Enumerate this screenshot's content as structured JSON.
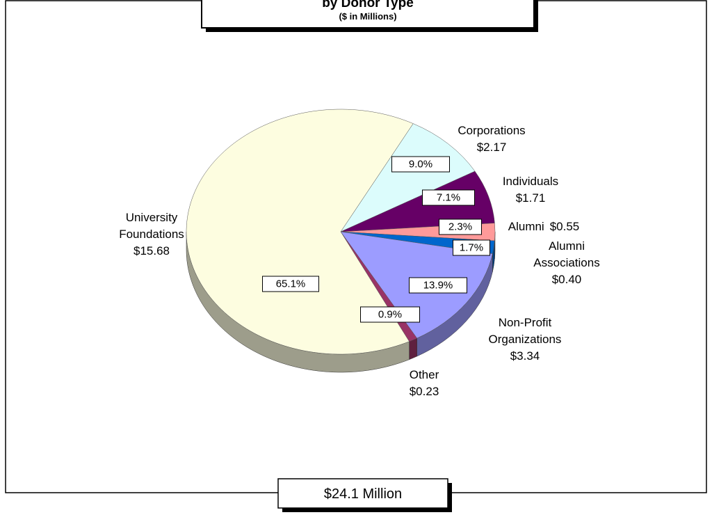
{
  "chart_data": {
    "type": "pie",
    "title": "by Donor Type",
    "subtitle": "($ in Millions)",
    "total_label": "$24.1 Million",
    "categories": [
      "Corporations",
      "Individuals",
      "Alumni",
      "Alumni Associations",
      "Non-Profit Organizations",
      "Other",
      "University Foundations"
    ],
    "values": [
      9.0,
      7.1,
      2.3,
      1.7,
      13.9,
      0.9,
      65.1
    ],
    "value_labels": [
      "9.0%",
      "7.1%",
      "2.3%",
      "1.7%",
      "13.9%",
      "0.9%",
      "65.1%"
    ],
    "amount_labels": [
      "$2.17",
      "$1.71",
      "$0.55",
      "$0.40",
      "$3.34",
      "$0.23",
      "$15.68"
    ],
    "colors": [
      "#dcfcfc",
      "#660066",
      "#ff9a9a",
      "#0066cc",
      "#9c9cff",
      "#993366",
      "#fdfde0"
    ]
  }
}
